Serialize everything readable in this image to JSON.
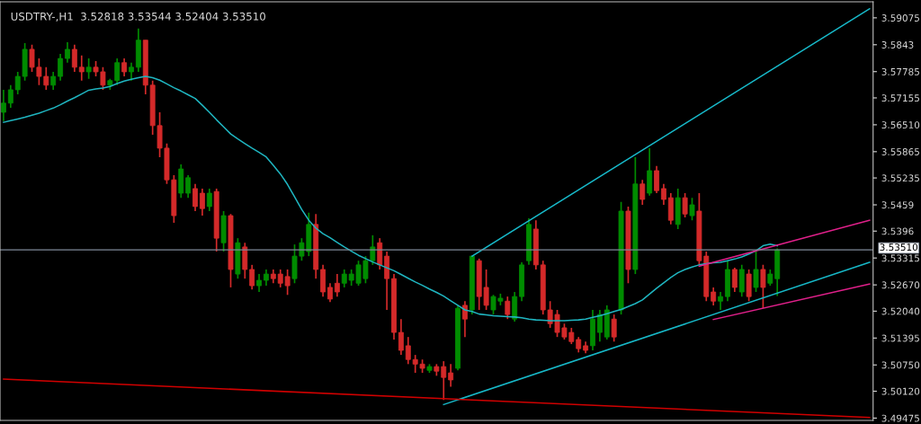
{
  "chart_data": {
    "type": "candlestick",
    "title": "USDTRY-,H1  3.52818 3.53544 3.52404 3.53510",
    "categories": [
      null,
      null,
      null,
      null,
      null,
      null,
      null,
      null,
      null,
      null,
      null,
      null,
      null,
      null,
      null,
      null,
      null,
      null,
      null,
      null,
      null,
      null,
      null,
      null,
      null,
      null,
      null,
      null,
      null,
      null,
      null,
      null,
      null,
      null,
      null,
      null,
      null,
      null,
      null,
      null,
      null,
      null,
      null,
      null,
      null,
      null,
      null,
      null,
      null,
      null,
      null,
      null,
      null,
      null,
      null,
      null,
      null,
      null,
      null,
      null,
      null,
      null,
      null,
      null,
      null,
      null,
      null,
      null,
      null,
      null,
      null,
      null,
      null,
      null,
      null,
      null,
      null,
      null,
      null,
      null,
      null,
      null,
      null,
      null,
      null,
      null,
      null,
      null,
      null,
      null,
      null,
      null,
      null,
      null,
      null,
      null,
      null,
      null,
      null,
      null,
      null,
      null,
      null,
      null,
      null,
      null,
      null,
      null,
      null,
      null,
      null,
      null,
      null,
      null,
      null,
      null,
      null,
      null,
      null,
      null,
      null,
      null,
      null
    ],
    "ohlc": [
      [
        3.5681,
        3.5735,
        3.566,
        3.5703
      ],
      [
        3.5703,
        3.5746,
        3.5692,
        3.5735
      ],
      [
        3.5735,
        3.5778,
        3.5724,
        3.5767
      ],
      [
        3.5767,
        3.5847,
        3.5757,
        3.5832
      ],
      [
        3.5832,
        3.5843,
        3.5778,
        3.5789
      ],
      [
        3.5789,
        3.581,
        3.5746,
        3.5767
      ],
      [
        3.5767,
        3.5789,
        3.5735,
        3.5746
      ],
      [
        3.5746,
        3.5778,
        3.5735,
        3.5767
      ],
      [
        3.5767,
        3.5821,
        3.5757,
        3.581
      ],
      [
        3.581,
        3.5849,
        3.58,
        3.5832
      ],
      [
        3.5832,
        3.5843,
        3.5778,
        3.5789
      ],
      [
        3.5789,
        3.5817,
        3.5757,
        3.5778
      ],
      [
        3.5778,
        3.581,
        3.5761,
        3.5789
      ],
      [
        3.5789,
        3.5804,
        3.5767,
        3.5778
      ],
      [
        3.5778,
        3.5789,
        3.5735,
        3.5746
      ],
      [
        3.5746,
        3.5761,
        3.5735,
        3.5757
      ],
      [
        3.5757,
        3.581,
        3.5746,
        3.58
      ],
      [
        3.58,
        3.581,
        3.5767,
        3.5778
      ],
      [
        3.5778,
        3.58,
        3.5757,
        3.5789
      ],
      [
        3.5789,
        3.5882,
        3.5778,
        3.5854
      ],
      [
        3.5854,
        3.5854,
        3.5724,
        3.5746
      ],
      [
        3.5746,
        3.5757,
        3.5627,
        3.5649
      ],
      [
        3.5649,
        3.5681,
        3.5573,
        3.5595
      ],
      [
        3.5595,
        3.5606,
        3.5509,
        3.5519
      ],
      [
        3.5519,
        3.553,
        3.5416,
        3.5433
      ],
      [
        3.5487,
        3.5556,
        3.5476,
        3.5545
      ],
      [
        3.5487,
        3.553,
        3.5476,
        3.5524
      ],
      [
        3.5498,
        3.5509,
        3.5444,
        3.5455
      ],
      [
        3.5487,
        3.5498,
        3.5433,
        3.545
      ],
      [
        3.5455,
        3.5498,
        3.5444,
        3.5487
      ],
      [
        3.5491,
        3.5498,
        3.5347,
        3.5379
      ],
      [
        3.5368,
        3.5444,
        3.5347,
        3.5433
      ],
      [
        3.5433,
        3.5437,
        3.5261,
        3.5304
      ],
      [
        3.5293,
        3.5379,
        3.5282,
        3.5368
      ],
      [
        3.5358,
        3.5368,
        3.5282,
        3.5304
      ],
      [
        3.5304,
        3.5315,
        3.5256,
        3.5265
      ],
      [
        3.5265,
        3.5293,
        3.525,
        3.5278
      ],
      [
        3.5278,
        3.5304,
        3.5265,
        3.5293
      ],
      [
        3.5293,
        3.5304,
        3.5271,
        3.5282
      ],
      [
        3.5293,
        3.5304,
        3.5261,
        3.5271
      ],
      [
        3.5287,
        3.5304,
        3.5243,
        3.5265
      ],
      [
        3.5282,
        3.5364,
        3.5271,
        3.5336
      ],
      [
        3.5336,
        3.5379,
        3.5325,
        3.5368
      ],
      [
        3.5347,
        3.544,
        3.5336,
        3.5412
      ],
      [
        3.5412,
        3.5437,
        3.5282,
        3.5304
      ],
      [
        3.5304,
        3.5315,
        3.5239,
        3.525
      ],
      [
        3.5261,
        3.5271,
        3.5226,
        3.5233
      ],
      [
        3.5271,
        3.5293,
        3.5239,
        3.525
      ],
      [
        3.5271,
        3.5304,
        3.5261,
        3.5293
      ],
      [
        3.5278,
        3.5304,
        3.5265,
        3.5293
      ],
      [
        3.5271,
        3.5325,
        3.5265,
        3.5315
      ],
      [
        3.5282,
        3.5336,
        3.5271,
        3.5325
      ],
      [
        3.5325,
        3.5386,
        3.5315,
        3.5358
      ],
      [
        3.5368,
        3.5379,
        3.5304,
        3.5315
      ],
      [
        3.5336,
        3.5347,
        3.5207,
        3.5282
      ],
      [
        3.5282,
        3.5293,
        3.5136,
        3.5153
      ],
      [
        3.5153,
        3.5185,
        3.5099,
        3.511
      ],
      [
        3.5121,
        3.5142,
        3.5077,
        3.5088
      ],
      [
        3.5088,
        3.5099,
        3.5056,
        3.5077
      ],
      [
        3.5077,
        3.5088,
        3.5056,
        3.5067
      ],
      [
        3.5062,
        3.5077,
        3.5056,
        3.5071
      ],
      [
        3.5071,
        3.5077,
        3.5049,
        3.506
      ],
      [
        3.5071,
        3.5084,
        3.4991,
        3.5045
      ],
      [
        3.5056,
        3.5077,
        3.5023,
        3.5039
      ],
      [
        3.5067,
        3.5218,
        3.5062,
        3.5211
      ],
      [
        3.5218,
        3.5228,
        3.5142,
        3.5185
      ],
      [
        3.5207,
        3.5336,
        3.5196,
        3.5336
      ],
      [
        3.5325,
        3.533,
        3.5207,
        3.5239
      ],
      [
        3.5261,
        3.5304,
        3.5207,
        3.5218
      ],
      [
        3.5207,
        3.5243,
        3.5196,
        3.5239
      ],
      [
        3.5228,
        3.5246,
        3.5218,
        3.5235
      ],
      [
        3.5228,
        3.5239,
        3.5185,
        3.5196
      ],
      [
        3.5185,
        3.525,
        3.5179,
        3.5239
      ],
      [
        3.5239,
        3.5321,
        3.5228,
        3.5315
      ],
      [
        3.5325,
        3.5427,
        3.5315,
        3.5412
      ],
      [
        3.5401,
        3.5422,
        3.5304,
        3.5315
      ],
      [
        3.5315,
        3.5325,
        3.5196,
        3.5207
      ],
      [
        3.5207,
        3.5228,
        3.5164,
        3.5174
      ],
      [
        3.5196,
        3.5207,
        3.5142,
        3.5153
      ],
      [
        3.5164,
        3.5174,
        3.5136,
        3.5142
      ],
      [
        3.5153,
        3.5164,
        3.5125,
        3.5131
      ],
      [
        3.5136,
        3.5142,
        3.5105,
        3.5114
      ],
      [
        3.5121,
        3.5131,
        3.5103,
        3.511
      ],
      [
        3.5121,
        3.5207,
        3.511,
        3.5185
      ],
      [
        3.5153,
        3.5207,
        3.5131,
        3.5196
      ],
      [
        3.5142,
        3.5218,
        3.5136,
        3.5207
      ],
      [
        3.5185,
        3.5196,
        3.5131,
        3.5142
      ],
      [
        3.5207,
        3.5466,
        3.5196,
        3.5444
      ],
      [
        3.5444,
        3.5455,
        3.5271,
        3.5304
      ],
      [
        3.5304,
        3.5573,
        3.5293,
        3.5509
      ],
      [
        3.5509,
        3.5519,
        3.5459,
        3.5472
      ],
      [
        3.5487,
        3.5595,
        3.5481,
        3.5541
      ],
      [
        3.5541,
        3.5552,
        3.5487,
        3.5493
      ],
      [
        3.5498,
        3.5509,
        3.5459,
        3.5472
      ],
      [
        3.5476,
        3.5487,
        3.5412,
        3.5422
      ],
      [
        3.5412,
        3.5498,
        3.5401,
        3.5476
      ],
      [
        3.5476,
        3.5487,
        3.5429,
        3.5437
      ],
      [
        3.5433,
        3.5476,
        3.5422,
        3.5459
      ],
      [
        3.5444,
        3.5487,
        3.5315,
        3.5325
      ],
      [
        3.5336,
        3.5347,
        3.5228,
        3.5239
      ],
      [
        3.525,
        3.5261,
        3.5218,
        3.5228
      ],
      [
        3.5228,
        3.525,
        3.5207,
        3.5239
      ],
      [
        3.5239,
        3.5325,
        3.5228,
        3.5304
      ],
      [
        3.5304,
        3.5308,
        3.525,
        3.5261
      ],
      [
        3.525,
        3.5315,
        3.5239,
        3.5304
      ],
      [
        3.5293,
        3.5304,
        3.5228,
        3.5239
      ],
      [
        3.5261,
        3.5347,
        3.525,
        3.5304
      ],
      [
        3.5304,
        3.5315,
        3.5211,
        3.5261
      ],
      [
        3.5271,
        3.5304,
        3.5265,
        3.5293
      ],
      [
        3.52818,
        3.53544,
        3.52404,
        3.5351
      ],
      null,
      null,
      null,
      null,
      null,
      null,
      null,
      null,
      null,
      null,
      null,
      null,
      null
    ],
    "colors": [
      "#008c00",
      "#008c00",
      "#008c00",
      "#008c00",
      "#d42a2a",
      "#d42a2a",
      "#d42a2a",
      "#008c00",
      "#008c00",
      "#008c00",
      "#d42a2a",
      "#d42a2a",
      "#008c00",
      "#d42a2a",
      "#d42a2a",
      "#008c00",
      "#008c00",
      "#d42a2a",
      "#008c00",
      "#008c00",
      "#d42a2a",
      "#d42a2a",
      "#d42a2a",
      "#d42a2a",
      "#d42a2a",
      "#008c00",
      "#008c00",
      "#d42a2a",
      "#d42a2a",
      "#008c00",
      "#d42a2a",
      "#008c00",
      "#d42a2a",
      "#008c00",
      "#d42a2a",
      "#d42a2a",
      "#008c00",
      "#008c00",
      "#d42a2a",
      "#d42a2a",
      "#d42a2a",
      "#008c00",
      "#008c00",
      "#008c00",
      "#d42a2a",
      "#d42a2a",
      "#d42a2a",
      "#d42a2a",
      "#008c00",
      "#008c00",
      "#008c00",
      "#008c00",
      "#008c00",
      "#d42a2a",
      "#d42a2a",
      "#d42a2a",
      "#d42a2a",
      "#d42a2a",
      "#d42a2a",
      "#d42a2a",
      "#008c00",
      "#d42a2a",
      "#d42a2a",
      "#d42a2a",
      "#008c00",
      "#d42a2a",
      "#008c00",
      "#d42a2a",
      "#d42a2a",
      "#008c00",
      "#008c00",
      "#d42a2a",
      "#008c00",
      "#008c00",
      "#008c00",
      "#d42a2a",
      "#d42a2a",
      "#d42a2a",
      "#d42a2a",
      "#d42a2a",
      "#d42a2a",
      "#d42a2a",
      "#d42a2a",
      "#008c00",
      "#008c00",
      "#008c00",
      "#d42a2a",
      "#008c00",
      "#d42a2a",
      "#008c00",
      "#d42a2a",
      "#008c00",
      "#d42a2a",
      "#d42a2a",
      "#d42a2a",
      "#008c00",
      "#d42a2a",
      "#008c00",
      "#d42a2a",
      "#d42a2a",
      "#d42a2a",
      "#008c00",
      "#008c00",
      "#d42a2a",
      "#008c00",
      "#d42a2a",
      "#008c00",
      "#d42a2a",
      "#008c00",
      "#008c00",
      null,
      null,
      null,
      null,
      null,
      null,
      null,
      null,
      null,
      null,
      null,
      null,
      null
    ],
    "series": [
      {
        "type": "line",
        "color": "#1fb5c0",
        "values": [
          3.5657,
          3.5661,
          3.5665,
          3.5669,
          3.5674,
          3.5679,
          3.5685,
          3.5691,
          3.5699,
          3.5708,
          3.5716,
          3.5725,
          3.5734,
          3.5737,
          3.5739,
          3.5743,
          3.575,
          3.5756,
          3.576,
          3.5764,
          3.5767,
          3.5764,
          3.5758,
          3.5749,
          3.574,
          3.5732,
          3.5723,
          3.5714,
          3.5698,
          3.5681,
          3.5663,
          3.5646,
          3.5629,
          3.5617,
          3.5606,
          3.5595,
          3.5585,
          3.5574,
          3.5554,
          3.5533,
          3.5508,
          3.5478,
          3.5448,
          3.5422,
          3.5403,
          3.539,
          3.538,
          3.5369,
          3.5358,
          3.5348,
          3.5338,
          3.533,
          3.5322,
          3.5315,
          3.5308,
          3.5301,
          3.5292,
          3.5283,
          3.5274,
          3.5266,
          3.5257,
          3.5249,
          3.524,
          3.5229,
          3.5218,
          3.5207,
          3.5203,
          3.5197,
          3.5195,
          3.5193,
          3.5192,
          3.5191,
          3.519,
          3.5188,
          3.5185,
          3.5183,
          3.5182,
          3.5181,
          3.5181,
          3.5181,
          3.5182,
          3.5183,
          3.5185,
          3.5189,
          3.5193,
          3.5198,
          3.5203,
          3.5208,
          3.5215,
          3.5222,
          3.5231,
          3.5245,
          3.5259,
          3.5272,
          3.5285,
          3.5296,
          3.5304,
          3.531,
          3.5315,
          3.5318,
          3.532,
          3.5321,
          3.5325,
          3.5329,
          3.5334,
          3.5341,
          3.5349,
          3.5361,
          3.5365,
          3.5361,
          null,
          null,
          null,
          null,
          null,
          null,
          null,
          null,
          null,
          null,
          null,
          null,
          null
        ]
      },
      {
        "type": "line",
        "color": "#17b8c8",
        "values": [
          null,
          null,
          null,
          null,
          null,
          null,
          null,
          null,
          null,
          null,
          null,
          null,
          null,
          null,
          null,
          null,
          null,
          null,
          null,
          null,
          null,
          null,
          null,
          null,
          null,
          null,
          null,
          null,
          null,
          null,
          null,
          null,
          null,
          null,
          null,
          null,
          null,
          null,
          null,
          null,
          null,
          null,
          null,
          null,
          null,
          null,
          null,
          null,
          null,
          null,
          null,
          null,
          null,
          null,
          null,
          null,
          null,
          null,
          null,
          null,
          null,
          null,
          null,
          null,
          null,
          null,
          3.5336,
          null,
          null,
          null,
          null,
          null,
          null,
          null,
          null,
          null,
          null,
          null,
          null,
          null,
          null,
          null,
          null,
          null,
          null,
          null,
          null,
          null,
          null,
          null,
          null,
          null,
          null,
          null,
          null,
          null,
          null,
          null,
          null,
          null,
          null,
          null,
          null,
          null,
          null,
          null,
          null,
          null,
          null,
          null,
          null,
          null,
          null,
          null,
          null,
          null,
          null,
          null,
          null,
          null,
          null,
          null,
          3.5929
        ]
      },
      {
        "type": "line",
        "color": "#17b8c8",
        "values": [
          null,
          null,
          null,
          null,
          null,
          null,
          null,
          null,
          null,
          null,
          null,
          null,
          null,
          null,
          null,
          null,
          null,
          null,
          null,
          null,
          null,
          null,
          null,
          null,
          null,
          null,
          null,
          null,
          null,
          null,
          null,
          null,
          null,
          null,
          null,
          null,
          null,
          null,
          null,
          null,
          null,
          null,
          null,
          null,
          null,
          null,
          null,
          null,
          null,
          null,
          null,
          null,
          null,
          null,
          null,
          null,
          null,
          null,
          null,
          null,
          null,
          null,
          3.498,
          null,
          null,
          null,
          null,
          null,
          null,
          null,
          null,
          null,
          null,
          null,
          null,
          null,
          null,
          null,
          null,
          null,
          null,
          null,
          null,
          null,
          null,
          null,
          null,
          null,
          null,
          null,
          null,
          null,
          null,
          null,
          null,
          null,
          null,
          null,
          null,
          null,
          null,
          null,
          null,
          null,
          null,
          null,
          null,
          null,
          null,
          null,
          null,
          null,
          null,
          null,
          null,
          null,
          null,
          null,
          null,
          null,
          null,
          null,
          3.5321
        ]
      },
      {
        "type": "line",
        "color": "#e0208a",
        "values": [
          null,
          null,
          null,
          null,
          null,
          null,
          null,
          null,
          null,
          null,
          null,
          null,
          null,
          null,
          null,
          null,
          null,
          null,
          null,
          null,
          null,
          null,
          null,
          null,
          null,
          null,
          null,
          null,
          null,
          null,
          null,
          null,
          null,
          null,
          null,
          null,
          null,
          null,
          null,
          null,
          null,
          null,
          null,
          null,
          null,
          null,
          null,
          null,
          null,
          null,
          null,
          null,
          null,
          null,
          null,
          null,
          null,
          null,
          null,
          null,
          null,
          null,
          null,
          null,
          null,
          null,
          null,
          null,
          null,
          null,
          null,
          null,
          null,
          null,
          null,
          null,
          null,
          null,
          null,
          null,
          null,
          null,
          null,
          null,
          null,
          null,
          null,
          null,
          null,
          null,
          null,
          null,
          null,
          null,
          null,
          null,
          null,
          null,
          3.5312,
          null,
          null,
          null,
          null,
          null,
          null,
          null,
          null,
          null,
          null,
          null,
          null,
          null,
          null,
          null,
          null,
          null,
          null,
          null,
          null,
          null,
          null,
          null,
          3.5422
        ]
      },
      {
        "type": "line",
        "color": "#e0208a",
        "values": [
          null,
          null,
          null,
          null,
          null,
          null,
          null,
          null,
          null,
          null,
          null,
          null,
          null,
          null,
          null,
          null,
          null,
          null,
          null,
          null,
          null,
          null,
          null,
          null,
          null,
          null,
          null,
          null,
          null,
          null,
          null,
          null,
          null,
          null,
          null,
          null,
          null,
          null,
          null,
          null,
          null,
          null,
          null,
          null,
          null,
          null,
          null,
          null,
          null,
          null,
          null,
          null,
          null,
          null,
          null,
          null,
          null,
          null,
          null,
          null,
          null,
          null,
          null,
          null,
          null,
          null,
          null,
          null,
          null,
          null,
          null,
          null,
          null,
          null,
          null,
          null,
          null,
          null,
          null,
          null,
          null,
          null,
          null,
          null,
          null,
          null,
          null,
          null,
          null,
          null,
          null,
          null,
          null,
          null,
          null,
          null,
          null,
          null,
          null,
          null,
          3.5184,
          null,
          null,
          null,
          null,
          null,
          null,
          null,
          null,
          null,
          null,
          null,
          null,
          null,
          null,
          null,
          null,
          null,
          null,
          null,
          null,
          null,
          3.5269
        ]
      },
      {
        "type": "line",
        "color": "#d00000",
        "values": [
          3.5041,
          null,
          null,
          null,
          null,
          null,
          null,
          null,
          null,
          null,
          null,
          null,
          null,
          null,
          null,
          null,
          null,
          null,
          null,
          null,
          null,
          null,
          null,
          null,
          null,
          null,
          null,
          null,
          null,
          null,
          null,
          null,
          null,
          null,
          null,
          null,
          null,
          null,
          null,
          null,
          null,
          null,
          null,
          null,
          null,
          null,
          null,
          null,
          null,
          null,
          null,
          null,
          null,
          null,
          null,
          null,
          null,
          null,
          null,
          null,
          null,
          null,
          null,
          null,
          null,
          null,
          null,
          null,
          null,
          null,
          null,
          null,
          null,
          null,
          null,
          null,
          null,
          null,
          null,
          null,
          null,
          null,
          null,
          null,
          null,
          null,
          null,
          null,
          null,
          null,
          null,
          null,
          null,
          null,
          null,
          null,
          null,
          null,
          null,
          null,
          null,
          null,
          null,
          null,
          null,
          null,
          null,
          null,
          null,
          null,
          null,
          null,
          null,
          null,
          null,
          null,
          null,
          null,
          null,
          null,
          null,
          null,
          3.4949
        ]
      }
    ],
    "ref_lines": [
      {
        "axis": "y",
        "value": 3.5351,
        "label": "3.53510",
        "color": "#7f8a99"
      }
    ],
    "ylim": [
      3.4942,
      3.5946
    ],
    "yticks": [
      3.59075,
      3.5843,
      3.57785,
      3.57155,
      {
        "value": 3.5651,
        "label": "3.56510"
      },
      3.55865,
      3.55235,
      3.5459,
      3.5396,
      3.53315,
      {
        "value": 3.5267,
        "label": "3.52670"
      },
      {
        "value": 3.5204,
        "label": "3.52040"
      },
      3.51395,
      {
        "value": 3.5075,
        "label": "3.50750"
      },
      {
        "value": 3.5012,
        "label": "3.50120"
      },
      3.49475
    ],
    "tick_labels": "y",
    "grid": false
  }
}
